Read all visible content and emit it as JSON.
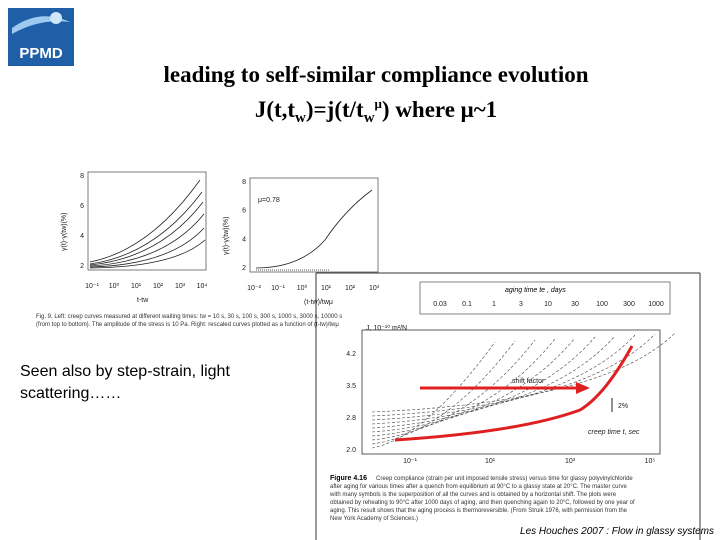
{
  "logo": {
    "text": "PPMD"
  },
  "title": {
    "line1": "leading to self-similar compliance evolution",
    "line2": {
      "a": "J(t,t",
      "b": "w",
      "c": ")=j(t/t",
      "d": "w",
      "e": "μ",
      "f": ") where μ~1"
    }
  },
  "body_text": {
    "lines": [
      "Seen also by step-strain, light",
      "scattering……"
    ]
  },
  "figure_left": {
    "plot1": {
      "y_label": "γ(t)-γ(tw)(%)",
      "yticks": [
        "8",
        "6",
        "4",
        "2"
      ],
      "xticks": [
        "10⁻¹",
        "10⁰",
        "10¹",
        "10²",
        "10³",
        "10⁴"
      ],
      "x_label": "t-tw"
    },
    "plot2": {
      "y_label": "γ(t)-γ(tw)(%)",
      "annotation": "μ=0.78",
      "yticks": [
        "8",
        "6",
        "4",
        "2"
      ],
      "xticks": [
        "10⁻²",
        "10⁻¹",
        "10⁰",
        "10¹",
        "10²",
        "10³"
      ],
      "x_label": "(t-tw)/twμ"
    },
    "caption": [
      "Fig. 9. Left: creep curves measured at different waiting times: tw = 10 s, 30 s, 100 s, 300 s, 1000 s, 3000 s, 10000 s",
      "(from top to bottom). The amplitude of the stress is 10 Pa. Right: rescaled curves plotted as a function of (t-tw)/twμ"
    ]
  },
  "figure_right": {
    "header": "aging time te , days",
    "top_ticks": [
      "0.03",
      "0.1",
      "1",
      "3",
      "10",
      "30",
      "100",
      "300",
      "1000"
    ],
    "y_label": "J, 10⁻¹⁰ m²/N",
    "yticks": [
      "4.2",
      "3.5",
      "2.8",
      "2.0"
    ],
    "xticks": [
      "10⁻¹",
      "10¹",
      "10³",
      "10⁵"
    ],
    "x_label": "creep time t, sec",
    "shift": "2%",
    "legend": "shift factor",
    "caption_title": "Figure 4.16",
    "caption": [
      "Creep compliance (strain per unit imposed tensile stress) versus time for glassy polyvinylchloride",
      "after aging for various times after a quench from equilibrium at 90°C to a glassy state at 20°C. The master curve",
      "with many symbols is the superposition of all the curves and is obtained by a horizontal shift. The plots were",
      "obtained by reheating to 90°C after 1000 days of aging, and then quenching again to 20°C, followed by one year of",
      "aging. This result shows that the aging process is thermoreversible. (From Struik 1976, with permission from the",
      "New York Academy of Sciences.)"
    ]
  },
  "footer": "Les Houches 2007 : Flow in glassy systems"
}
